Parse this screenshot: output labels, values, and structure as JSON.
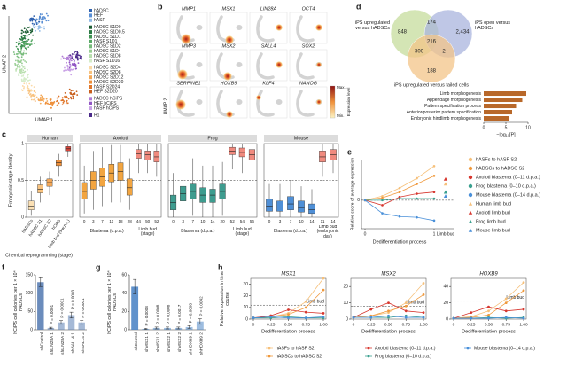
{
  "chart_data": [
    {
      "type": "umap",
      "label": "a",
      "xlabel": "UMAP 1",
      "ylabel": "UMAP 2",
      "legend": [
        {
          "name": "hADSC",
          "color": "#2f62b0"
        },
        {
          "name": "HEF",
          "color": "#5a8fd4"
        },
        {
          "name": "hASF",
          "color": "#93bce8"
        },
        {
          "name": "hADSC S1D0",
          "color": "#1d5e34"
        },
        {
          "name": "hADSC S1D0.5",
          "color": "#2b7a44"
        },
        {
          "name": "hADSC S1D1",
          "color": "#3f9352"
        },
        {
          "name": "hASF S1D1",
          "color": "#58a866"
        },
        {
          "name": "hADSC S1D2",
          "color": "#77bb7b"
        },
        {
          "name": "hADSC S1D4",
          "color": "#98cd93"
        },
        {
          "name": "hADSC S1D8",
          "color": "#b9dfae"
        },
        {
          "name": "hASF S1D16",
          "color": "#d5ecc8"
        },
        {
          "name": "hADSC S2D4",
          "color": "#fbd9a6"
        },
        {
          "name": "hADSC S2D8",
          "color": "#f8c27e"
        },
        {
          "name": "hADSC S2D12",
          "color": "#f4a858"
        },
        {
          "name": "hADSC S2D20",
          "color": "#ee8f3a"
        },
        {
          "name": "hASF S2D24",
          "color": "#e0762a"
        },
        {
          "name": "HEF S2D20",
          "color": "#c95f1e"
        },
        {
          "name": "hADSC hCiPS",
          "color": "#b07cd6"
        },
        {
          "name": "HEF hCiPS",
          "color": "#9257c4"
        },
        {
          "name": "hASF hCiPS",
          "color": "#c9a2e6"
        },
        {
          "name": "H1",
          "color": "#4b2a8a"
        }
      ]
    },
    {
      "type": "featureplot",
      "label": "b",
      "ylabel": "UMAP 2",
      "genes": [
        "MMP1",
        "MSX1",
        "LIN28A",
        "OCT4",
        "MMP3",
        "MSX2",
        "SALL4",
        "SOX2",
        "SERPINE1",
        "HOXB9",
        "KLF4",
        "NANOG"
      ],
      "colorbar": {
        "title": "Expression level",
        "max": "Max.",
        "min": "Min."
      }
    },
    {
      "type": "venn",
      "label": "d",
      "sets": [
        "iPS upregulated versus hADSCs",
        "iPS open versus hADSCs",
        "iPS upregulated versus failed cells"
      ],
      "counts": [
        "848",
        "174",
        "2,434",
        "300",
        "216",
        "2",
        "188"
      ],
      "colors": [
        "#c6dc9c",
        "#a9b4de",
        "#f3c488"
      ]
    },
    {
      "type": "bar",
      "orientation": "horizontal",
      "categories": [
        "Limb morphogenesis",
        "Appendage morphogenesis",
        "Pattern specification process",
        "Anterior/posterior pattern specification",
        "Embryonic hindlimb morphogenesis"
      ],
      "values": [
        9.6,
        8.7,
        7.3,
        6.4,
        5.8
      ],
      "color": "#b8682a",
      "xlim": [
        0,
        10
      ],
      "xticks": [
        0,
        5,
        10
      ],
      "xlabel": "−log₁₀[P]"
    },
    {
      "type": "box",
      "label": "c",
      "ylabel": "Embryonic stage identity",
      "ylim": [
        0,
        1
      ],
      "yticks": [
        0,
        0.5,
        1
      ],
      "hline": 0.5,
      "groups": [
        {
          "name": "Human",
          "subgroups": [
            {
              "label": "Chemical reprogramming (stage)",
              "colors": [
                "#fbe0b4",
                "#f8c27e",
                "#f4a858",
                "#ee8f3a",
                "#d9463b"
              ],
              "categories": [
                "hADSCs",
                "hADSC S1",
                "hADSC S2",
                "hCiPS",
                "Limb bud (5 w.p.c.)"
              ],
              "boxes": [
                {
                  "min": 0.02,
                  "q1": 0.1,
                  "median": 0.15,
                  "q3": 0.22,
                  "max": 0.35
                },
                {
                  "min": 0.2,
                  "q1": 0.33,
                  "median": 0.38,
                  "q3": 0.44,
                  "max": 0.55
                },
                {
                  "min": 0.3,
                  "q1": 0.42,
                  "median": 0.47,
                  "q3": 0.52,
                  "max": 0.62
                },
                {
                  "min": 0.55,
                  "q1": 0.7,
                  "median": 0.74,
                  "q3": 0.78,
                  "max": 0.86
                },
                {
                  "min": 0.82,
                  "q1": 0.9,
                  "median": 0.93,
                  "q3": 0.96,
                  "max": 1
                }
              ]
            }
          ]
        },
        {
          "name": "Axolotl",
          "subgroups": [
            {
              "label": "Blastema (d.p.a.)",
              "color": "#f2a541",
              "categories": [
                "0",
                "3",
                "7",
                "11",
                "18",
                "28"
              ],
              "boxes": [
                {
                  "min": 0.05,
                  "q1": 0.25,
                  "median": 0.35,
                  "q3": 0.47,
                  "max": 0.7
                },
                {
                  "min": 0.1,
                  "q1": 0.38,
                  "median": 0.5,
                  "q3": 0.62,
                  "max": 0.9
                },
                {
                  "min": 0.15,
                  "q1": 0.42,
                  "median": 0.55,
                  "q3": 0.67,
                  "max": 0.95
                },
                {
                  "min": 0.2,
                  "q1": 0.48,
                  "median": 0.6,
                  "q3": 0.72,
                  "max": 0.98
                },
                {
                  "min": 0.2,
                  "q1": 0.5,
                  "median": 0.62,
                  "q3": 0.74,
                  "max": 0.98
                },
                {
                  "min": 0.1,
                  "q1": 0.3,
                  "median": 0.4,
                  "q3": 0.52,
                  "max": 0.8
                }
              ]
            },
            {
              "label": "Limb bud (stage)",
              "color": "#f08a7e",
              "categories": [
                "44",
                "50",
                "52"
              ],
              "boxes": [
                {
                  "min": 0.6,
                  "q1": 0.8,
                  "median": 0.86,
                  "q3": 0.92,
                  "max": 1
                },
                {
                  "min": 0.6,
                  "q1": 0.78,
                  "median": 0.85,
                  "q3": 0.9,
                  "max": 1
                },
                {
                  "min": 0.55,
                  "q1": 0.75,
                  "median": 0.82,
                  "q3": 0.9,
                  "max": 1
                }
              ]
            }
          ]
        },
        {
          "name": "Frog",
          "subgroups": [
            {
              "label": "Blastema (d.p.a.)",
              "color": "#3e9c8f",
              "categories": [
                "0",
                "3",
                "7",
                "10",
                "14",
                "20"
              ],
              "boxes": [
                {
                  "min": 0,
                  "q1": 0.1,
                  "median": 0.2,
                  "q3": 0.3,
                  "max": 0.6
                },
                {
                  "min": 0,
                  "q1": 0.22,
                  "median": 0.32,
                  "q3": 0.42,
                  "max": 0.75
                },
                {
                  "min": 0.02,
                  "q1": 0.25,
                  "median": 0.35,
                  "q3": 0.45,
                  "max": 0.8
                },
                {
                  "min": 0,
                  "q1": 0.2,
                  "median": 0.3,
                  "q3": 0.4,
                  "max": 0.7
                },
                {
                  "min": 0,
                  "q1": 0.2,
                  "median": 0.3,
                  "q3": 0.38,
                  "max": 0.7
                },
                {
                  "min": 0.02,
                  "q1": 0.25,
                  "median": 0.35,
                  "q3": 0.45,
                  "max": 0.75
                }
              ]
            },
            {
              "label": "Limb bud (stage)",
              "color": "#f08a7e",
              "categories": [
                "52",
                "54",
                "56"
              ],
              "boxes": [
                {
                  "min": 0.65,
                  "q1": 0.85,
                  "median": 0.9,
                  "q3": 0.95,
                  "max": 1
                },
                {
                  "min": 0.6,
                  "q1": 0.82,
                  "median": 0.88,
                  "q3": 0.94,
                  "max": 1
                },
                {
                  "min": 0.55,
                  "q1": 0.78,
                  "median": 0.85,
                  "q3": 0.92,
                  "max": 1
                }
              ]
            }
          ]
        },
        {
          "name": "Mouse",
          "subgroups": [
            {
              "label": "Blastema (d.p.a.)",
              "color": "#4f8fd6",
              "categories": [
                "0",
                "3",
                "7",
                "10",
                "14"
              ],
              "boxes": [
                {
                  "min": 0,
                  "q1": 0.08,
                  "median": 0.15,
                  "q3": 0.25,
                  "max": 0.45
                },
                {
                  "min": 0,
                  "q1": 0.08,
                  "median": 0.14,
                  "q3": 0.22,
                  "max": 0.45
                },
                {
                  "min": 0,
                  "q1": 0.1,
                  "median": 0.18,
                  "q3": 0.28,
                  "max": 0.5
                },
                {
                  "min": 0,
                  "q1": 0.07,
                  "median": 0.13,
                  "q3": 0.22,
                  "max": 0.42
                },
                {
                  "min": 0,
                  "q1": 0.05,
                  "median": 0.1,
                  "q3": 0.18,
                  "max": 0.38
                }
              ]
            },
            {
              "label": "Limb bud (embryonic day)",
              "color": "#f08a7e",
              "categories": [
                "11",
                "14"
              ],
              "boxes": [
                {
                  "min": 0.55,
                  "q1": 0.75,
                  "median": 0.82,
                  "q3": 0.9,
                  "max": 1
                },
                {
                  "min": 0.6,
                  "q1": 0.78,
                  "median": 0.85,
                  "q3": 0.92,
                  "max": 1
                }
              ]
            }
          ]
        }
      ]
    },
    {
      "type": "line",
      "label": "e",
      "xlabel": "Dedifferentiation process",
      "ylabel": "Relative score of average expression",
      "limb_bud_label": "Limb bud",
      "x": [
        0,
        0.25,
        0.5,
        0.75,
        1
      ],
      "xlim": [
        0,
        1
      ],
      "xticks": [
        0,
        1
      ],
      "ylim": [
        -0.35,
        0.5
      ],
      "yticks": [
        0
      ],
      "series": [
        {
          "name": "hASFs to hASF S2",
          "color": "#f6c07a",
          "values": [
            0,
            0.05,
            0.15,
            0.27,
            0.42
          ]
        },
        {
          "name": "hADSCs to hADSC S2",
          "color": "#f0993c",
          "values": [
            0,
            0.03,
            0.1,
            0.2,
            0.3
          ]
        },
        {
          "name": "Axolotl blastema (0–11 d.p.a.)",
          "color": "#d7372f",
          "values": [
            0,
            -0.06,
            0.04,
            0.08,
            0.1
          ]
        },
        {
          "name": "Frog blastema (0–10 d.p.a.)",
          "color": "#3aa08f",
          "values": [
            0,
            0,
            0.02,
            0.02,
            0.02
          ]
        },
        {
          "name": "Mouse blastema (0–14 d.p.a.)",
          "color": "#4a90d9",
          "values": [
            0,
            -0.16,
            -0.2,
            -0.21,
            -0.25
          ]
        }
      ],
      "limb_bud": [
        {
          "name": "Human limb bud",
          "color": "#f6c07a",
          "values": [
            0.2
          ]
        },
        {
          "name": "Axolotl limb bud",
          "color": "#d7372f",
          "values": [
            0.26
          ]
        },
        {
          "name": "Frog limb bud",
          "color": "#3aa08f",
          "values": [
            0.1
          ]
        },
        {
          "name": "Mouse limb bud",
          "color": "#4a90d9",
          "values": [
            0.05
          ]
        }
      ]
    },
    {
      "type": "bar",
      "label": "f",
      "ylabel": "hCiPS cell colonies per 1 × 10⁴ hADSCs",
      "categories": [
        "shControl",
        "shLIN28A 1",
        "shLIN28A 2",
        "shSALL4 1",
        "shSALL4 2"
      ],
      "values": [
        130,
        5,
        20,
        40,
        20
      ],
      "errors": [
        12,
        2,
        5,
        8,
        5
      ],
      "p_labels": [
        null,
        "P = 0.0001",
        "P = 0.0001",
        "P = 0.0003",
        "P = 0.0001"
      ],
      "color": "#5b7fb5",
      "ylim": [
        0,
        150
      ],
      "yticks": [
        0,
        50,
        100,
        150
      ]
    },
    {
      "type": "bar",
      "label": "g",
      "ylabel": "hCiPS cell colonies per 1 × 10⁴ hADSCs",
      "categories": [
        "shControl",
        "shMSX1 1",
        "shMSX1 2",
        "shMSX2 1",
        "shMSX2 2",
        "shHOXB9 1",
        "shHOXB9 2"
      ],
      "values": [
        47,
        1,
        2,
        2,
        2,
        3,
        9
      ],
      "errors": [
        8,
        0.5,
        1,
        1,
        1,
        1.5,
        3
      ],
      "p_labels": [
        null,
        "P = 0.0008",
        "P = 0.0008",
        "P = 0.0008",
        "P = 0.0017",
        "P = 0.0008",
        "P = 0.0042"
      ],
      "color": "#4f86c6",
      "ylim": [
        0,
        60
      ],
      "yticks": [
        0,
        20,
        40,
        60
      ]
    },
    {
      "type": "line",
      "label": "h",
      "ylabel": "Relative expression in time course",
      "xlabel": "Dedifferentiation process",
      "x": [
        0,
        0.25,
        0.5,
        0.75,
        1
      ],
      "xlim": [
        0,
        1
      ],
      "xticks": [
        0,
        0.25,
        {
          "value": 0.5,
          "label": "0.50"
        },
        0.75,
        {
          "value": 1,
          "label": "1.00"
        }
      ],
      "legend": [
        {
          "name": "hASFs to hASF S2",
          "color": "#f6c07a"
        },
        {
          "name": "hADSCs to hADSC S2",
          "color": "#f0993c"
        },
        {
          "name": "Axolotl blastema (0–11 d.p.a.)",
          "color": "#d7372f"
        },
        {
          "name": "Frog blastema (0–10 d.p.a.)",
          "color": "#3aa08f"
        },
        {
          "name": "Mouse blastema (0–14 d.p.a.)",
          "color": "#4a90d9"
        }
      ],
      "charts": [
        {
          "title": "MSX1",
          "limb_bud_label": "Limb bud",
          "limb_bud": 12,
          "ylim": [
            0,
            35
          ],
          "yticks": [
            0,
            10,
            20,
            30
          ],
          "values": [
            [
              1,
              2,
              5,
              15,
              35
            ],
            [
              1,
              2,
              4,
              10,
              25
            ],
            [
              1,
              3,
              8,
              6,
              5
            ],
            [
              1,
              1,
              2,
              1,
              1
            ],
            [
              1,
              2,
              1,
              1,
              2
            ]
          ]
        },
        {
          "title": "MSX2",
          "limb_bud_label": "Limb bud",
          "limb_bud": 8,
          "ylim": [
            0,
            25
          ],
          "yticks": [
            0,
            10,
            20
          ],
          "values": [
            [
              1,
              2,
              4,
              10,
              22
            ],
            [
              1,
              2,
              5,
              8,
              15
            ],
            [
              1,
              6,
              10,
              5,
              4
            ],
            [
              1,
              1,
              1,
              2,
              1
            ],
            [
              1,
              1,
              2,
              1,
              1
            ]
          ]
        },
        {
          "title": "HOXB9",
          "limb_bud_label": "Limb bud",
          "limb_bud": 22,
          "ylim": [
            0,
            50
          ],
          "yticks": [
            0,
            20,
            40
          ],
          "values": [
            [
              1,
              3,
              10,
              25,
              45
            ],
            [
              1,
              2,
              5,
              20,
              35
            ],
            [
              1,
              8,
              15,
              10,
              12
            ],
            [
              1,
              1,
              2,
              1,
              2
            ],
            [
              1,
              1,
              1,
              2,
              1
            ]
          ]
        }
      ]
    }
  ]
}
